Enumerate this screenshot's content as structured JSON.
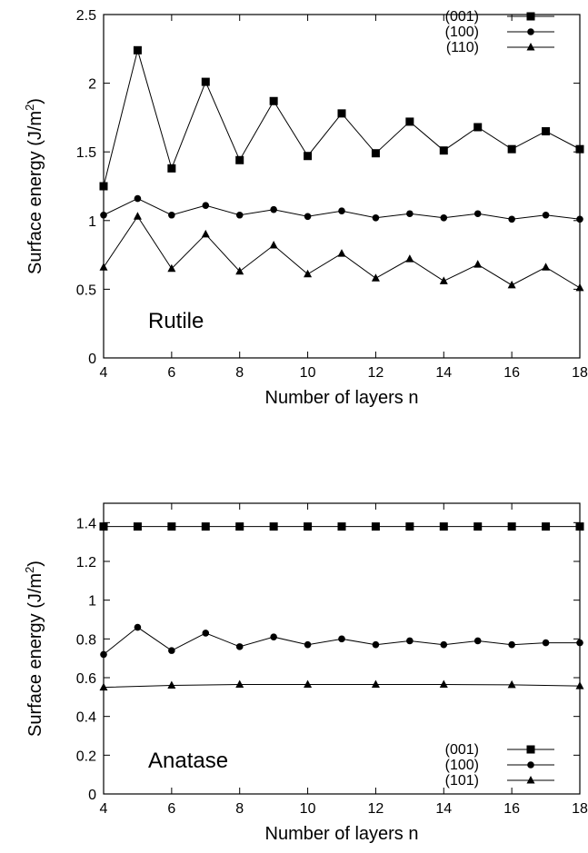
{
  "chart_data": [
    {
      "type": "line",
      "label": "Rutile",
      "xlabel": "Number of layers n",
      "ylabel_main": "Surface energy (J/m",
      "ylabel_sup": "2",
      "ylabel_close": ")",
      "xlim": [
        4,
        18
      ],
      "ylim": [
        0,
        2.5
      ],
      "xticks": [
        4,
        6,
        8,
        10,
        12,
        14,
        16,
        18
      ],
      "yticks": [
        0,
        0.5,
        1,
        1.5,
        2,
        2.5
      ],
      "ytick_labels": [
        "0",
        "0.5",
        "1",
        "1.5",
        "2",
        "2.5"
      ],
      "legend_position": "top-right",
      "x": [
        4,
        5,
        6,
        7,
        8,
        9,
        10,
        11,
        12,
        13,
        14,
        15,
        16,
        17,
        18
      ],
      "series": [
        {
          "name": "(001)",
          "marker": "square",
          "values": [
            1.25,
            2.24,
            1.38,
            2.01,
            1.44,
            1.87,
            1.47,
            1.78,
            1.49,
            1.72,
            1.51,
            1.68,
            1.52,
            1.65,
            1.52
          ]
        },
        {
          "name": "(100)",
          "marker": "circle",
          "values": [
            1.04,
            1.16,
            1.04,
            1.11,
            1.04,
            1.08,
            1.03,
            1.07,
            1.02,
            1.05,
            1.02,
            1.05,
            1.01,
            1.04,
            1.01
          ]
        },
        {
          "name": "(110)",
          "marker": "triangle",
          "values": [
            0.66,
            1.03,
            0.65,
            0.9,
            0.63,
            0.82,
            0.61,
            0.76,
            0.58,
            0.72,
            0.56,
            0.68,
            0.53,
            0.66,
            0.51
          ]
        }
      ]
    },
    {
      "type": "line",
      "label": "Anatase",
      "xlabel": "Number of layers n",
      "ylabel_main": "Surface energy (J/m",
      "ylabel_sup": "2",
      "ylabel_close": ")",
      "xlim": [
        4,
        18
      ],
      "ylim": [
        0,
        1.5
      ],
      "xticks": [
        4,
        6,
        8,
        10,
        12,
        14,
        16,
        18
      ],
      "yticks": [
        0,
        0.2,
        0.4,
        0.6,
        0.8,
        1,
        1.2,
        1.4
      ],
      "ytick_labels": [
        "0",
        "0.2",
        "0.4",
        "0.6",
        "0.8",
        "1",
        "1.2",
        "1.4"
      ],
      "legend_position": "bottom-right",
      "x": [
        4,
        5,
        6,
        7,
        8,
        9,
        10,
        11,
        12,
        13,
        14,
        15,
        16,
        17,
        18
      ],
      "series": [
        {
          "name": "(001)",
          "marker": "square",
          "values": [
            1.38,
            1.38,
            1.38,
            1.38,
            1.38,
            1.38,
            1.38,
            1.38,
            1.38,
            1.38,
            1.38,
            1.38,
            1.38,
            1.38,
            1.38
          ]
        },
        {
          "name": "(100)",
          "marker": "circle",
          "values": [
            0.72,
            0.86,
            0.74,
            0.83,
            0.76,
            0.81,
            0.77,
            0.8,
            0.77,
            0.79,
            0.77,
            0.79,
            0.77,
            0.78,
            0.78
          ]
        },
        {
          "name": "(101)",
          "marker": "triangle",
          "x": [
            4,
            6,
            8,
            10,
            12,
            14,
            16,
            18
          ],
          "values": [
            0.55,
            0.56,
            0.565,
            0.565,
            0.565,
            0.565,
            0.563,
            0.557
          ]
        }
      ]
    }
  ]
}
